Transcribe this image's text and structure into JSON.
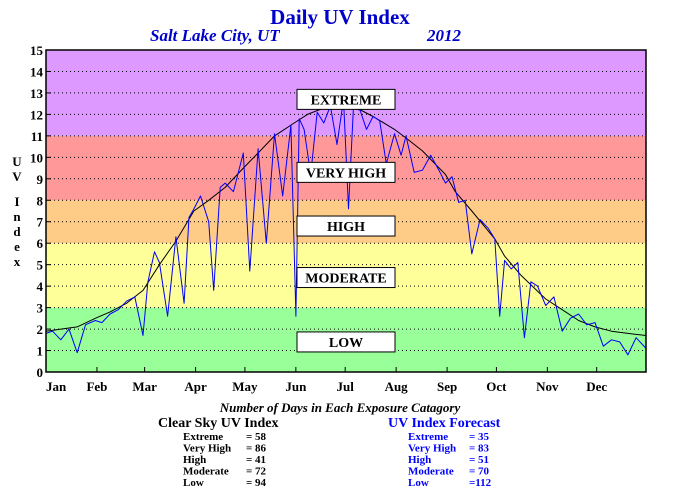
{
  "chart_data": {
    "type": "line",
    "title": "Daily UV Index",
    "subtitle_location": "Salt Lake City, UT",
    "subtitle_year": "2012",
    "ylabel": "UV Index",
    "ylim": [
      0,
      15
    ],
    "yticks": [
      "0",
      "1",
      "2",
      "3",
      "4",
      "5",
      "6",
      "7",
      "8",
      "9",
      "10",
      "11",
      "12",
      "13",
      "14",
      "15"
    ],
    "x_ticks": [
      "Jan",
      "Feb",
      "Mar",
      "Apr",
      "May",
      "Jun",
      "Jul",
      "Aug",
      "Sep",
      "Oct",
      "Nov",
      "Dec"
    ],
    "x_range_days": [
      1,
      366
    ],
    "grid": "dotted horizontal",
    "bands": [
      {
        "name": "LOW",
        "from": 0,
        "to": 3,
        "color": "#99ff99"
      },
      {
        "name": "MODERATE",
        "from": 3,
        "to": 6,
        "color": "#ffff99"
      },
      {
        "name": "HIGH",
        "from": 6,
        "to": 8,
        "color": "#ffcc88"
      },
      {
        "name": "VERY HIGH",
        "from": 8,
        "to": 11,
        "color": "#ff9999"
      },
      {
        "name": "EXTREME",
        "from": 11,
        "to": 15,
        "color": "#dd99ff"
      }
    ],
    "band_labels": [
      {
        "text": "EXTREME",
        "value": 12.7
      },
      {
        "text": "VERY HIGH",
        "value": 9.3
      },
      {
        "text": "HIGH",
        "value": 6.8
      },
      {
        "text": "MODERATE",
        "value": 4.4
      },
      {
        "text": "LOW",
        "value": 1.4
      }
    ],
    "series": [
      {
        "color": "#000000",
        "x": [
          1,
          10,
          20,
          31,
          40,
          50,
          60,
          70,
          80,
          91,
          100,
          110,
          121,
          130,
          140,
          152,
          160,
          170,
          182,
          190,
          200,
          213,
          220,
          230,
          244,
          250,
          260,
          274,
          280,
          290,
          305,
          315,
          325,
          335,
          345,
          355,
          366
        ],
        "values": [
          1.9,
          2.0,
          2.1,
          2.5,
          2.8,
          3.2,
          3.8,
          5.0,
          6.1,
          7.5,
          8.0,
          8.6,
          9.5,
          10.2,
          11.0,
          11.6,
          12.0,
          12.3,
          12.5,
          12.3,
          11.9,
          11.3,
          10.9,
          10.3,
          9.2,
          8.4,
          7.5,
          6.2,
          5.4,
          4.5,
          3.4,
          2.9,
          2.4,
          2.1,
          1.9,
          1.8,
          1.7
        ]
      },
      {
        "color": "#0000ff",
        "x": [
          1,
          5,
          10,
          15,
          20,
          25,
          31,
          35,
          40,
          45,
          50,
          55,
          60,
          63,
          67,
          70,
          75,
          80,
          85,
          88,
          91,
          95,
          100,
          103,
          107,
          110,
          115,
          121,
          125,
          130,
          135,
          140,
          145,
          150,
          153,
          155,
          158,
          162,
          166,
          170,
          174,
          178,
          182,
          185,
          188,
          192,
          196,
          200,
          204,
          208,
          213,
          217,
          220,
          225,
          230,
          235,
          240,
          244,
          248,
          252,
          256,
          260,
          265,
          270,
          274,
          277,
          280,
          284,
          288,
          292,
          296,
          300,
          305,
          310,
          315,
          320,
          325,
          330,
          335,
          340,
          345,
          350,
          355,
          360,
          366
        ],
        "values": [
          1.8,
          1.9,
          1.5,
          2.0,
          0.9,
          2.2,
          2.4,
          2.3,
          2.7,
          2.9,
          3.3,
          3.5,
          1.7,
          4.2,
          5.6,
          5.1,
          2.6,
          6.3,
          3.2,
          7.2,
          7.6,
          8.2,
          7.0,
          3.8,
          8.6,
          8.8,
          8.4,
          10.2,
          4.7,
          10.4,
          6.0,
          11.1,
          8.2,
          11.5,
          2.6,
          11.8,
          11.3,
          9.2,
          12.1,
          11.6,
          12.4,
          10.6,
          12.7,
          7.6,
          12.3,
          12.2,
          11.3,
          11.9,
          11.7,
          9.7,
          11.1,
          10.1,
          11.0,
          9.3,
          9.4,
          10.1,
          9.4,
          8.8,
          9.1,
          7.9,
          8.0,
          5.5,
          7.1,
          6.7,
          6.2,
          2.6,
          5.2,
          4.8,
          5.1,
          1.6,
          4.2,
          4.0,
          3.1,
          3.5,
          1.9,
          2.5,
          2.7,
          2.2,
          2.3,
          1.2,
          1.5,
          1.4,
          0.8,
          1.6,
          1.1
        ]
      }
    ]
  },
  "counts": {
    "title": "Number of Days in Each Exposure Catagory",
    "left": {
      "heading": "Clear Sky UV Index",
      "color": "#000000",
      "rows": [
        {
          "label": "Extreme",
          "value": "= 58"
        },
        {
          "label": "Very High",
          "value": "= 86"
        },
        {
          "label": "High",
          "value": "= 41"
        },
        {
          "label": "Moderate",
          "value": "= 72"
        },
        {
          "label": "Low",
          "value": "= 94"
        }
      ]
    },
    "right": {
      "heading": "UV Index Forecast",
      "color": "#0000ff",
      "rows": [
        {
          "label": "Extreme",
          "value": "= 35"
        },
        {
          "label": "Very High",
          "value": "= 83"
        },
        {
          "label": "High",
          "value": "= 51"
        },
        {
          "label": "Moderate",
          "value": "= 70"
        },
        {
          "label": "Low",
          "value": "=112"
        }
      ]
    }
  }
}
